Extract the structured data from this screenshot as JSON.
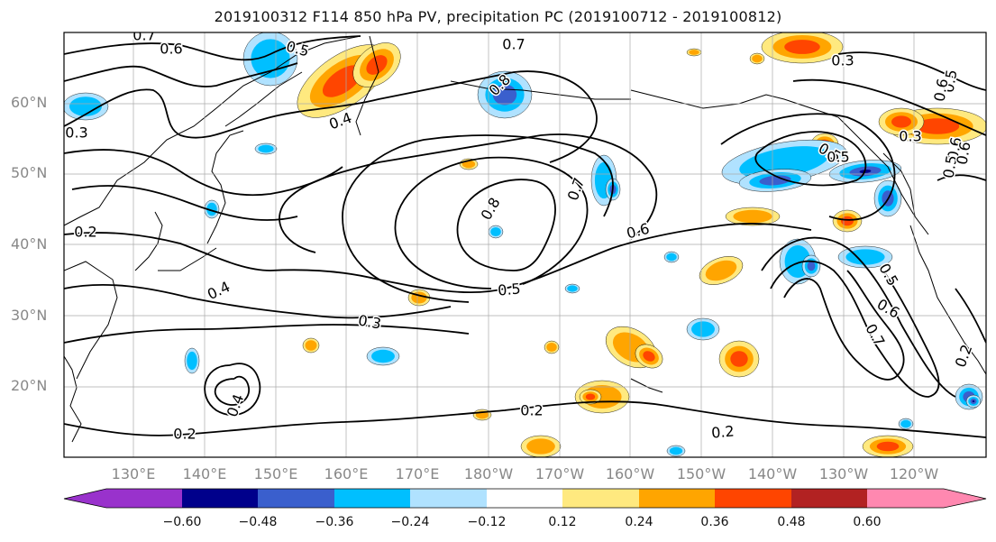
{
  "title": "2019100312 F114 850 hPa PV, precipitation PC (2019100712 - 2019100812)",
  "lat_labels": [
    "60°N",
    "50°N",
    "40°N",
    "30°N",
    "20°N"
  ],
  "lon_labels": [
    "130°E",
    "140°E",
    "150°E",
    "160°E",
    "170°E",
    "180°W",
    "170°W",
    "160°W",
    "150°W",
    "140°W",
    "130°W",
    "120°W"
  ],
  "contour_labels": [
    "0.7",
    "0.6",
    "0.5",
    "0.7",
    "0.8",
    "0.3",
    "0.4",
    "0.3",
    "0.2",
    "0.8",
    "0.7",
    "0.6",
    "0.5",
    "0.4",
    "0.3",
    "0.5",
    "0.4",
    "0.2",
    "0.2",
    "0.2",
    "0.3",
    "0.5",
    "0.6",
    "0.5",
    "0.6",
    "0.5",
    "0.6",
    "0.7",
    "0.2",
    "0.5",
    "0.6"
  ],
  "colorbar": {
    "ticks": [
      "−0.60",
      "−0.48",
      "−0.36",
      "−0.24",
      "−0.12",
      "0.12",
      "0.24",
      "0.36",
      "0.48",
      "0.60"
    ],
    "colors": [
      "#9932cc",
      "#00008b",
      "#3a5fcd",
      "#00bfff",
      "#b0e2ff",
      "#ffffff",
      "#ffe97f",
      "#ffa500",
      "#ff4500",
      "#b22222",
      "#ff88b0"
    ]
  },
  "palette": {
    "pos1": "#ffe97f",
    "pos2": "#ffa500",
    "pos3": "#ff4500",
    "pos4": "#b22222",
    "neg1": "#b0e2ff",
    "neg2": "#00bfff",
    "neg3": "#3a5fcd",
    "neg4": "#00008b",
    "coast": "#000000",
    "grid": "#aaaaaa",
    "contour": "#000000"
  }
}
